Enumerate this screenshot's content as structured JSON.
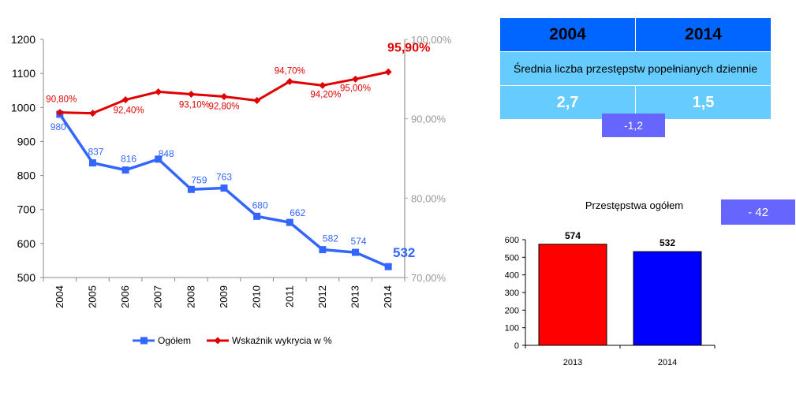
{
  "chart_data": [
    {
      "type": "line",
      "x": [
        "2004",
        "2005",
        "2006",
        "2007",
        "2008",
        "2009",
        "2010",
        "2011",
        "2012",
        "2013",
        "2014"
      ],
      "series": [
        {
          "name": "Ogółem",
          "axis": "left",
          "color": "#3366ff",
          "values": [
            980,
            837,
            816,
            848,
            759,
            763,
            680,
            662,
            582,
            574,
            532
          ],
          "labels": [
            "980",
            "837",
            "816",
            "848",
            "759",
            "763",
            "680",
            "662",
            "582",
            "574",
            "532"
          ]
        },
        {
          "name": "Wskaźnik wykrycia w %",
          "axis": "right",
          "color": "#e00000",
          "values": [
            90.8,
            90.7,
            92.4,
            93.4,
            93.1,
            92.8,
            92.3,
            94.7,
            94.2,
            95.0,
            95.9
          ],
          "labels": [
            "90,80%",
            "",
            "92,40%",
            "",
            "93,10%",
            "92,80%",
            "",
            "94,70%",
            "94,20%",
            "95,00%",
            "95,90%"
          ]
        }
      ],
      "y_left": {
        "lim": [
          500,
          1200
        ],
        "ticks": [
          "500",
          "600",
          "700",
          "800",
          "900",
          "1000",
          "1100",
          "1200"
        ]
      },
      "y_right": {
        "lim": [
          70,
          100
        ],
        "ticks": [
          "70,00%",
          "80,00%",
          "90,00%",
          "100,00%"
        ]
      },
      "legend": "bottom",
      "grid": false
    },
    {
      "type": "bar",
      "title": "Przestępstwa ogółem",
      "categories": [
        "2013",
        "2014"
      ],
      "values": [
        574,
        532
      ],
      "colors": [
        "#ff0000",
        "#0000ff"
      ],
      "ylim": [
        0,
        600
      ],
      "yticks": [
        "0",
        "100",
        "200",
        "300",
        "400",
        "500",
        "600"
      ],
      "grid": false
    }
  ],
  "stats_table": {
    "year_a": "2004",
    "year_b": "2014",
    "description": "Średnia liczba przestępstw popełnianych dziennie",
    "value_a": "2,7",
    "value_b": "1,5",
    "difference": "-1,2"
  },
  "total_difference": "- 42"
}
